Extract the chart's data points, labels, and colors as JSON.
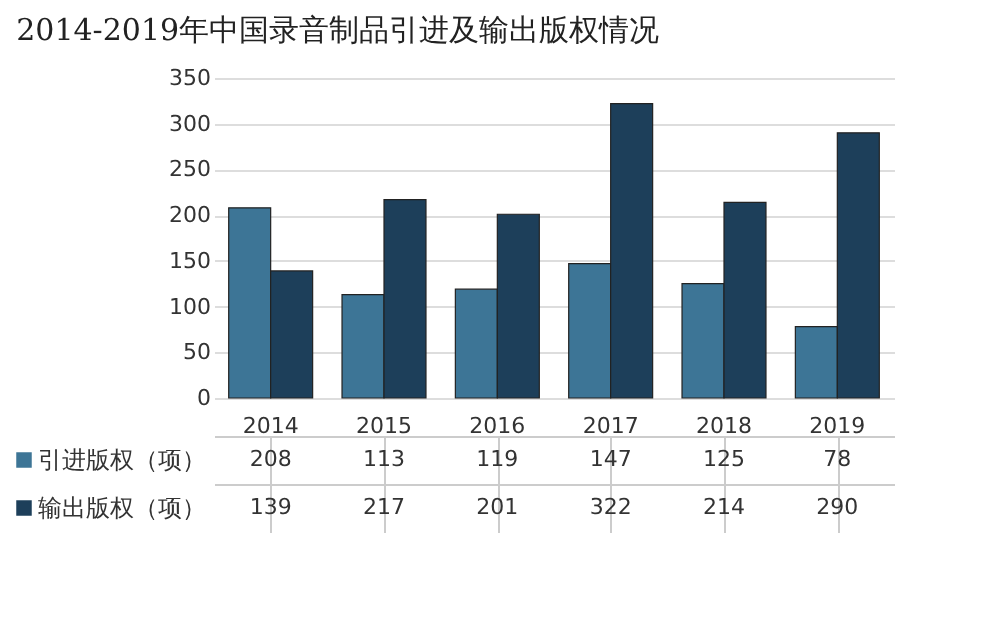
{
  "chart_data": {
    "type": "bar",
    "title": "2014-2019年中国录音制品引进及输出版权情况",
    "categories": [
      "2014",
      "2015",
      "2016",
      "2017",
      "2018",
      "2019"
    ],
    "series": [
      {
        "name": "引进版权（项）",
        "color": "#3d7596",
        "values": [
          208,
          113,
          119,
          147,
          125,
          78
        ]
      },
      {
        "name": "输出版权（项）",
        "color": "#1d3f5a",
        "values": [
          139,
          217,
          201,
          322,
          214,
          290
        ]
      }
    ],
    "ylim": [
      0,
      350
    ],
    "yticks": [
      0,
      50,
      100,
      150,
      200,
      250,
      300,
      350
    ],
    "grid": "y",
    "legend": "bottom",
    "data_labels": true
  }
}
